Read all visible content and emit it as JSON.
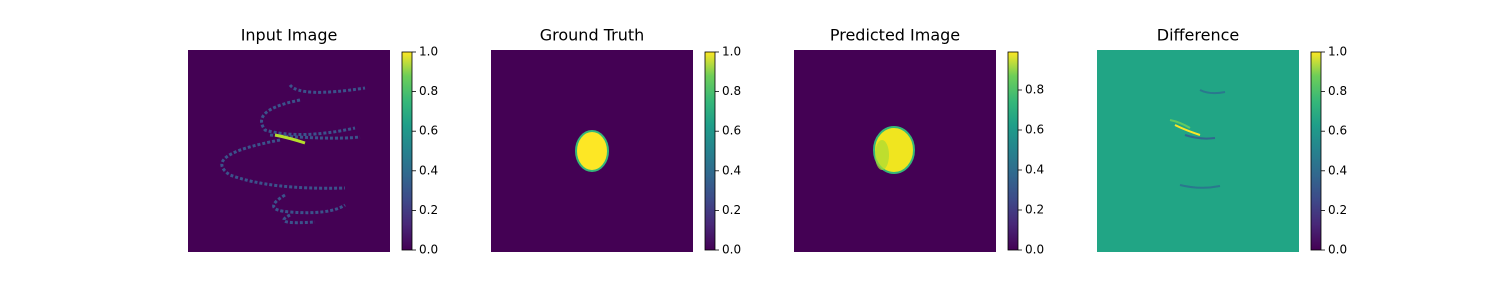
{
  "chart_data": [
    {
      "type": "image",
      "title": "Input Image",
      "ylim": [
        0,
        1
      ],
      "yticks": [
        {
          "value": 0,
          "label": "0.0"
        },
        {
          "value": 0.2,
          "label": "0.2"
        },
        {
          "value": 0.4,
          "label": "0.4"
        },
        {
          "value": 0.6,
          "label": "0.6"
        },
        {
          "value": 0.8,
          "label": "0.8"
        },
        {
          "value": 1,
          "label": "1.0"
        }
      ]
    },
    {
      "type": "image",
      "title": "Ground Truth",
      "ylim": [
        0,
        1
      ],
      "yticks": [
        {
          "value": 0,
          "label": "0.0"
        },
        {
          "value": 0.2,
          "label": "0.2"
        },
        {
          "value": 0.4,
          "label": "0.4"
        },
        {
          "value": 0.6,
          "label": "0.6"
        },
        {
          "value": 0.8,
          "label": "0.8"
        },
        {
          "value": 1,
          "label": "1.0"
        }
      ]
    },
    {
      "type": "image",
      "title": "Predicted Image",
      "ylim": [
        0,
        0.99
      ],
      "yticks": [
        {
          "value": 0,
          "label": "0.0"
        },
        {
          "value": 0.2,
          "label": "0.2"
        },
        {
          "value": 0.4,
          "label": "0.4"
        },
        {
          "value": 0.6,
          "label": "0.6"
        },
        {
          "value": 0.8,
          "label": "0.8"
        }
      ]
    },
    {
      "type": "image",
      "title": "Difference",
      "ylim": [
        0,
        1
      ],
      "yticks": [
        {
          "value": 0,
          "label": "0.0"
        },
        {
          "value": 0.2,
          "label": "0.2"
        },
        {
          "value": 0.4,
          "label": "0.4"
        },
        {
          "value": 0.6,
          "label": "0.6"
        },
        {
          "value": 0.8,
          "label": "0.8"
        },
        {
          "value": 1,
          "label": "1.0"
        }
      ]
    }
  ]
}
